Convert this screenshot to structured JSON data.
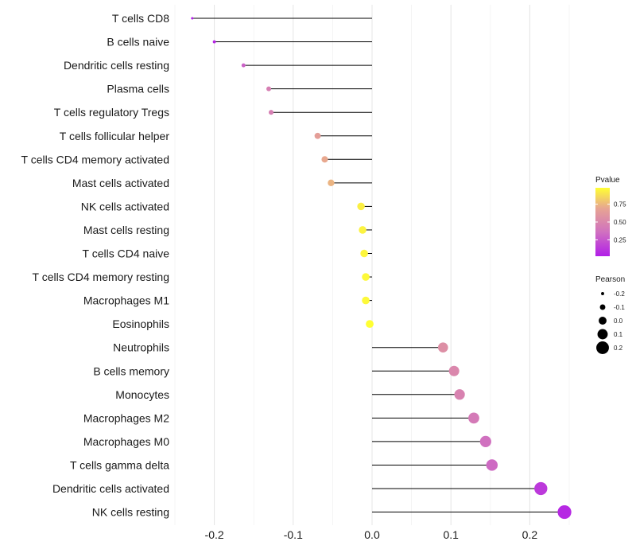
{
  "chart_data": {
    "type": "lollipop",
    "xlabel": "",
    "ylabel": "",
    "xlim": [
      -0.25,
      0.25
    ],
    "x_ticks": [
      -0.2,
      -0.1,
      0.0,
      0.1,
      0.2
    ],
    "x_tick_labels": [
      "-0.2",
      "-0.1",
      "0.0",
      "0.1",
      "0.2"
    ],
    "grid": true,
    "points": [
      {
        "label": "T cells CD8",
        "pearson": -0.228,
        "pvalue": 0.02
      },
      {
        "label": "B cells naive",
        "pearson": -0.2,
        "pvalue": 0.05
      },
      {
        "label": "Dendritic cells resting",
        "pearson": -0.163,
        "pvalue": 0.3
      },
      {
        "label": "Plasma cells",
        "pearson": -0.131,
        "pvalue": 0.45
      },
      {
        "label": "T cells regulatory  Tregs",
        "pearson": -0.128,
        "pvalue": 0.45
      },
      {
        "label": "T cells follicular helper",
        "pearson": -0.069,
        "pvalue": 0.65
      },
      {
        "label": "T cells CD4 memory activated",
        "pearson": -0.06,
        "pvalue": 0.7
      },
      {
        "label": "Mast cells activated",
        "pearson": -0.052,
        "pvalue": 0.74
      },
      {
        "label": "NK cells activated",
        "pearson": -0.014,
        "pvalue": 0.93
      },
      {
        "label": "Mast cells resting",
        "pearson": -0.012,
        "pvalue": 0.94
      },
      {
        "label": "T cells CD4 naive",
        "pearson": -0.01,
        "pvalue": 0.95
      },
      {
        "label": "T cells CD4 memory resting",
        "pearson": -0.008,
        "pvalue": 0.96
      },
      {
        "label": "Macrophages M1",
        "pearson": -0.008,
        "pvalue": 0.96
      },
      {
        "label": "Eosinophils",
        "pearson": -0.003,
        "pvalue": 0.98
      },
      {
        "label": "Neutrophils",
        "pearson": 0.09,
        "pvalue": 0.55
      },
      {
        "label": "B cells memory",
        "pearson": 0.104,
        "pvalue": 0.5
      },
      {
        "label": "Monocytes",
        "pearson": 0.111,
        "pvalue": 0.47
      },
      {
        "label": "Macrophages M2",
        "pearson": 0.129,
        "pvalue": 0.42
      },
      {
        "label": "Macrophages M0",
        "pearson": 0.144,
        "pvalue": 0.36
      },
      {
        "label": "T cells gamma delta",
        "pearson": 0.152,
        "pvalue": 0.33
      },
      {
        "label": "Dendritic cells activated",
        "pearson": 0.214,
        "pvalue": 0.13
      },
      {
        "label": "NK cells resting",
        "pearson": 0.244,
        "pvalue": 0.06
      }
    ],
    "legend_color": {
      "title": "Pvalue",
      "ticks": [
        0.75,
        0.5,
        0.25
      ],
      "tick_labels": [
        "0.75",
        "0.50",
        "0.25"
      ],
      "range": [
        0.02,
        0.98
      ],
      "colors": [
        "#b21ee8",
        "#d070c0",
        "#e7a592",
        "#ffff33"
      ]
    },
    "legend_size": {
      "title": "Pearson",
      "values": [
        -0.2,
        -0.1,
        0.0,
        0.1,
        0.2
      ],
      "labels": [
        "-0.2",
        "-0.1",
        "0.0",
        "0.1",
        "0.2"
      ]
    }
  }
}
